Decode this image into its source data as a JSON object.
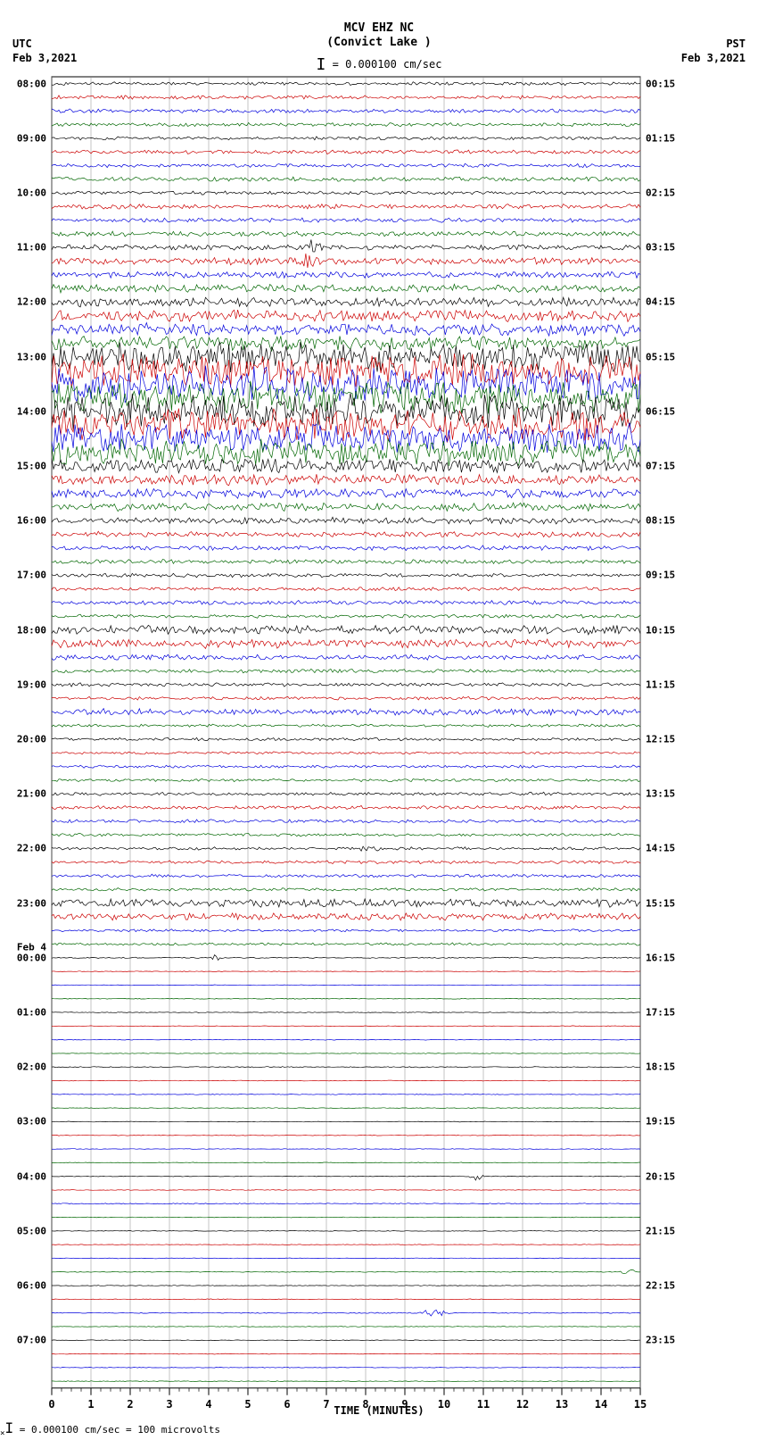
{
  "header": {
    "station": "MCV EHZ NC",
    "location": "(Convict Lake )",
    "scale_text": "= 0.000100 cm/sec"
  },
  "left": {
    "tz": "UTC",
    "date": "Feb 3,2021"
  },
  "right": {
    "tz": "PST",
    "date": "Feb 3,2021"
  },
  "feb4_label": "Feb 4",
  "x_axis": {
    "label": "TIME (MINUTES)",
    "ticks": [
      "0",
      "1",
      "2",
      "3",
      "4",
      "5",
      "6",
      "7",
      "8",
      "9",
      "10",
      "11",
      "12",
      "13",
      "14",
      "15"
    ],
    "major_step": 1,
    "minor_per_major": 4
  },
  "footer": "= 0.000100 cm/sec =    100 microvolts",
  "plot": {
    "background": "#ffffff",
    "grid_color": "#888888",
    "grid_width": 0.5,
    "border_color": "#000000",
    "colors": [
      "#000000",
      "#cc0000",
      "#0000dd",
      "#006600"
    ],
    "n_traces": 96,
    "trace_spacing": 15.3,
    "left_hours": [
      "08:00",
      "09:00",
      "10:00",
      "11:00",
      "12:00",
      "13:00",
      "14:00",
      "15:00",
      "16:00",
      "17:00",
      "18:00",
      "19:00",
      "20:00",
      "21:00",
      "22:00",
      "23:00",
      "00:00",
      "01:00",
      "02:00",
      "03:00",
      "04:00",
      "05:00",
      "06:00",
      "07:00"
    ],
    "right_hours": [
      "00:15",
      "01:15",
      "02:15",
      "03:15",
      "04:15",
      "05:15",
      "06:15",
      "07:15",
      "08:15",
      "09:15",
      "10:15",
      "11:15",
      "12:15",
      "13:15",
      "14:15",
      "15:15",
      "16:15",
      "17:15",
      "18:15",
      "19:15",
      "20:15",
      "21:15",
      "22:15",
      "23:15"
    ],
    "amplitude_profile": [
      0.9,
      1.0,
      1.1,
      1.0,
      0.9,
      1.1,
      1.0,
      1.2,
      1.0,
      1.3,
      1.2,
      1.4,
      1.5,
      2.0,
      1.8,
      2.2,
      2.5,
      3.2,
      3.5,
      4.0,
      8.0,
      9.0,
      9.5,
      9.0,
      9.5,
      9.0,
      8.5,
      7.0,
      4.0,
      3.0,
      2.8,
      2.2,
      1.8,
      1.5,
      1.3,
      1.2,
      1.1,
      1.0,
      1.2,
      1.0,
      2.5,
      2.5,
      1.5,
      1.0,
      1.0,
      0.9,
      1.8,
      0.8,
      0.8,
      0.7,
      0.8,
      0.8,
      0.9,
      1.0,
      0.9,
      0.8,
      0.8,
      0.9,
      0.9,
      0.8,
      2.2,
      2.0,
      0.7,
      0.7,
      0.3,
      0.2,
      0.2,
      0.2,
      0.2,
      0.2,
      0.2,
      0.2,
      0.3,
      0.2,
      0.2,
      0.2,
      0.2,
      0.2,
      0.2,
      0.2,
      0.2,
      0.2,
      0.3,
      0.2,
      0.2,
      0.2,
      0.2,
      0.2,
      0.2,
      0.2,
      0.3,
      0.2,
      0.2,
      0.2,
      0.2,
      0.2
    ],
    "events": [
      {
        "trace": 12,
        "x": 0.44,
        "amp": 5.0,
        "w": 0.02
      },
      {
        "trace": 13,
        "x": 0.44,
        "amp": 6.0,
        "w": 0.015
      },
      {
        "trace": 56,
        "x": 0.54,
        "amp": 2.5,
        "w": 0.02
      },
      {
        "trace": 64,
        "x": 0.28,
        "amp": 2.0,
        "w": 0.01
      },
      {
        "trace": 80,
        "x": 0.72,
        "amp": 3.5,
        "w": 0.01
      },
      {
        "trace": 90,
        "x": 0.65,
        "amp": 2.5,
        "w": 0.02
      },
      {
        "trace": 87,
        "x": 0.98,
        "amp": 3.0,
        "w": 0.01
      }
    ]
  }
}
